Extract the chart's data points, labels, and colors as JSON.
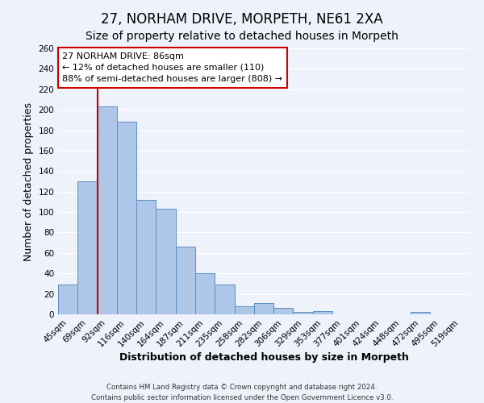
{
  "title": "27, NORHAM DRIVE, MORPETH, NE61 2XA",
  "subtitle": "Size of property relative to detached houses in Morpeth",
  "xlabel": "Distribution of detached houses by size in Morpeth",
  "ylabel": "Number of detached properties",
  "footer_line1": "Contains HM Land Registry data © Crown copyright and database right 2024.",
  "footer_line2": "Contains public sector information licensed under the Open Government Licence v3.0.",
  "bin_labels": [
    "45sqm",
    "69sqm",
    "92sqm",
    "116sqm",
    "140sqm",
    "164sqm",
    "187sqm",
    "211sqm",
    "235sqm",
    "258sqm",
    "282sqm",
    "306sqm",
    "329sqm",
    "353sqm",
    "377sqm",
    "401sqm",
    "424sqm",
    "448sqm",
    "472sqm",
    "495sqm",
    "519sqm"
  ],
  "bar_values": [
    29,
    130,
    203,
    188,
    112,
    103,
    66,
    40,
    29,
    8,
    11,
    6,
    2,
    3,
    0,
    0,
    0,
    0,
    2,
    0,
    0
  ],
  "bar_color": "#aec6e8",
  "bar_edge_color": "#5a8fc2",
  "vline_x_index": 1,
  "vline_color": "#cc0000",
  "annotation_line1": "27 NORHAM DRIVE: 86sqm",
  "annotation_line2": "← 12% of detached houses are smaller (110)",
  "annotation_line3": "88% of semi-detached houses are larger (808) →",
  "annotation_box_color": "#ffffff",
  "annotation_box_edge_color": "#cc0000",
  "ylim": [
    0,
    260
  ],
  "yticks": [
    0,
    20,
    40,
    60,
    80,
    100,
    120,
    140,
    160,
    180,
    200,
    220,
    240,
    260
  ],
  "background_color": "#eef2fa",
  "grid_color": "#ffffff",
  "title_fontsize": 12,
  "subtitle_fontsize": 10,
  "axis_label_fontsize": 9,
  "tick_fontsize": 7.5,
  "annotation_fontsize": 8
}
